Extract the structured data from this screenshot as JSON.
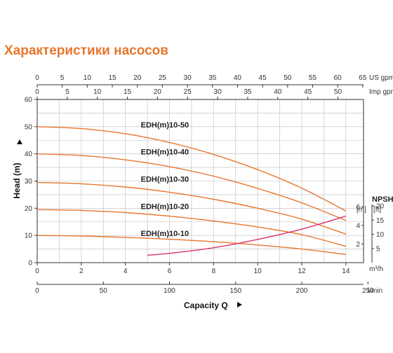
{
  "title": "Характеристики насосов",
  "colors": {
    "title": "#e8762c",
    "head_curve": "#e8762c",
    "npsh_curve": "#d6336c",
    "grid": "#bbbbbb",
    "axis": "#333333"
  },
  "chart_data": {
    "type": "line",
    "title": "Характеристики насосов",
    "xlabel": "Capacity Q",
    "ylabel": "Head (m)",
    "xlim": [
      0,
      14.8
    ],
    "ylim": [
      0,
      60
    ],
    "grid": true,
    "x_ticks": [
      "0",
      "2",
      "4",
      "6",
      "8",
      "10",
      "12",
      "14"
    ],
    "x_unit": "m³/h",
    "y_ticks": [
      "0",
      "10",
      "20",
      "30",
      "40",
      "50",
      "60"
    ],
    "top_axis_us": {
      "ticks": [
        "0",
        "5",
        "10",
        "15",
        "20",
        "25",
        "30",
        "35",
        "40",
        "45",
        "50",
        "55",
        "60",
        "65"
      ],
      "unit": "US gpm"
    },
    "top_axis_imp": {
      "ticks": [
        "0",
        "5",
        "10",
        "15",
        "20",
        "25",
        "30",
        "35",
        "40",
        "45",
        "50"
      ],
      "unit": "Imp gpm"
    },
    "bottom_axis_lmin": {
      "ticks": [
        "0",
        "50",
        "100",
        "150",
        "200",
        "250"
      ],
      "unit": "l/min"
    },
    "npsh_axis": {
      "label": "NPSH",
      "m_unit": "[m]",
      "ft_unit": "[ft]",
      "m_ticks": [
        "2",
        "4",
        "6"
      ],
      "ft_ticks": [
        "5",
        "10",
        "15",
        "20"
      ]
    },
    "series": [
      {
        "name": "EDH(m)10-50",
        "x": [
          0,
          2,
          4,
          6,
          8,
          10,
          12,
          14
        ],
        "y": [
          50,
          49.3,
          47.4,
          44.2,
          39.8,
          34.2,
          27.4,
          19
        ]
      },
      {
        "name": "EDH(m)10-40",
        "x": [
          0,
          2,
          4,
          6,
          8,
          10,
          12,
          14
        ],
        "y": [
          40,
          39.4,
          37.8,
          35.3,
          31.8,
          27.3,
          22,
          15.5
        ]
      },
      {
        "name": "EDH(m)10-30",
        "x": [
          0,
          2,
          4,
          6,
          8,
          10,
          12,
          14
        ],
        "y": [
          29.5,
          29,
          27.8,
          25.9,
          23.3,
          20,
          16,
          10.5
        ]
      },
      {
        "name": "EDH(m)10-20",
        "x": [
          0,
          2,
          4,
          6,
          8,
          10,
          12,
          14
        ],
        "y": [
          19.5,
          19.2,
          18.4,
          17.1,
          15.3,
          13.1,
          10.3,
          6
        ]
      },
      {
        "name": "EDH(m)10-10",
        "x": [
          0,
          2,
          4,
          6,
          8,
          10,
          12,
          14
        ],
        "y": [
          10,
          9.8,
          9.3,
          8.6,
          7.7,
          6.5,
          5,
          3
        ]
      }
    ],
    "npsh": {
      "x": [
        5,
        6,
        8,
        10,
        12,
        14
      ],
      "m": [
        0.8,
        1.0,
        1.6,
        2.5,
        3.6,
        5.0
      ]
    }
  }
}
